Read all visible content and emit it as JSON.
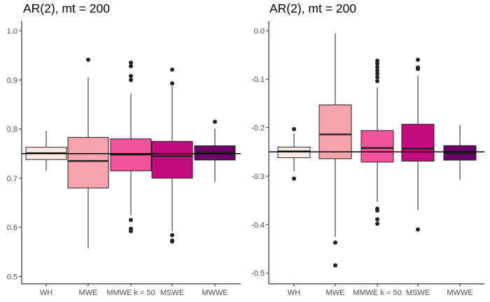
{
  "chart_data": [
    {
      "type": "box",
      "title": "AR(2), mt = 200",
      "xlabel": "",
      "ylabel": "",
      "categories": [
        "WH",
        "MWE",
        "MMWE k = 50",
        "MSWE",
        "MWWE"
      ],
      "ylim": [
        0.485,
        1.02
      ],
      "yticks": [
        0.5,
        0.6,
        0.7,
        0.8,
        0.9,
        1.0
      ],
      "ytick_labels": [
        "0.5",
        "0.6",
        "0.7",
        "0.8",
        "0.9",
        "1.0"
      ],
      "reference_line": 0.75,
      "colors": [
        "#fde9e3",
        "#f6a3ab",
        "#f3539a",
        "#c20b7e",
        "#6b006a"
      ],
      "boxes": [
        {
          "category": "WH",
          "whisker_low": 0.715,
          "q1": 0.738,
          "median": 0.751,
          "q3": 0.763,
          "whisker_high": 0.796,
          "outliers": []
        },
        {
          "category": "MWE",
          "whisker_low": 0.557,
          "q1": 0.68,
          "median": 0.735,
          "q3": 0.783,
          "whisker_high": 0.905,
          "outliers": [
            0.941
          ]
        },
        {
          "category": "MMWE k = 50",
          "whisker_low": 0.625,
          "q1": 0.715,
          "median": 0.748,
          "q3": 0.78,
          "whisker_high": 0.872,
          "outliers": [
            0.935,
            0.928,
            0.908,
            0.9,
            0.615,
            0.597,
            0.592
          ]
        },
        {
          "category": "MSWE",
          "whisker_low": 0.592,
          "q1": 0.7,
          "median": 0.745,
          "q3": 0.775,
          "whisker_high": 0.888,
          "outliers": [
            0.921,
            0.893,
            0.584,
            0.573,
            0.571
          ]
        },
        {
          "category": "MWWE",
          "whisker_low": 0.692,
          "q1": 0.737,
          "median": 0.752,
          "q3": 0.766,
          "whisker_high": 0.801,
          "outliers": [
            0.815
          ]
        }
      ]
    },
    {
      "type": "box",
      "title": "AR(2), mt = 200",
      "xlabel": "",
      "ylabel": "",
      "categories": [
        "WH",
        "MWE",
        "MMWE k = 50",
        "MSWE",
        "MWWE"
      ],
      "ylim": [
        -0.522,
        0.02
      ],
      "yticks": [
        -0.5,
        -0.4,
        -0.3,
        -0.2,
        -0.1,
        0.0
      ],
      "ytick_labels": [
        "-0.5",
        "-0.4",
        "-0.3",
        "-0.2",
        "-0.1",
        "0.0"
      ],
      "reference_line": -0.25,
      "colors": [
        "#fde9e3",
        "#f6a3ab",
        "#f3539a",
        "#c20b7e",
        "#6b006a"
      ],
      "boxes": [
        {
          "category": "WH",
          "whisker_low": -0.29,
          "q1": -0.262,
          "median": -0.249,
          "q3": -0.24,
          "whisker_high": -0.212,
          "outliers": [
            -0.203,
            -0.305
          ]
        },
        {
          "category": "MWE",
          "whisker_low": -0.425,
          "q1": -0.264,
          "median": -0.214,
          "q3": -0.153,
          "whisker_high": -0.005,
          "outliers": [
            -0.437,
            -0.484
          ]
        },
        {
          "category": "MMWE k = 50",
          "whisker_low": -0.353,
          "q1": -0.271,
          "median": -0.242,
          "q3": -0.206,
          "whisker_high": -0.117,
          "outliers": [
            -0.062,
            -0.068,
            -0.075,
            -0.082,
            -0.089,
            -0.096,
            -0.104,
            -0.367,
            -0.371,
            -0.389,
            -0.398
          ]
        },
        {
          "category": "MSWE",
          "whisker_low": -0.37,
          "q1": -0.269,
          "median": -0.243,
          "q3": -0.193,
          "whisker_high": -0.092,
          "outliers": [
            -0.06,
            -0.076,
            -0.079,
            -0.41
          ]
        },
        {
          "category": "MWWE",
          "whisker_low": -0.308,
          "q1": -0.267,
          "median": -0.253,
          "q3": -0.237,
          "whisker_high": -0.195,
          "outliers": []
        }
      ]
    }
  ]
}
